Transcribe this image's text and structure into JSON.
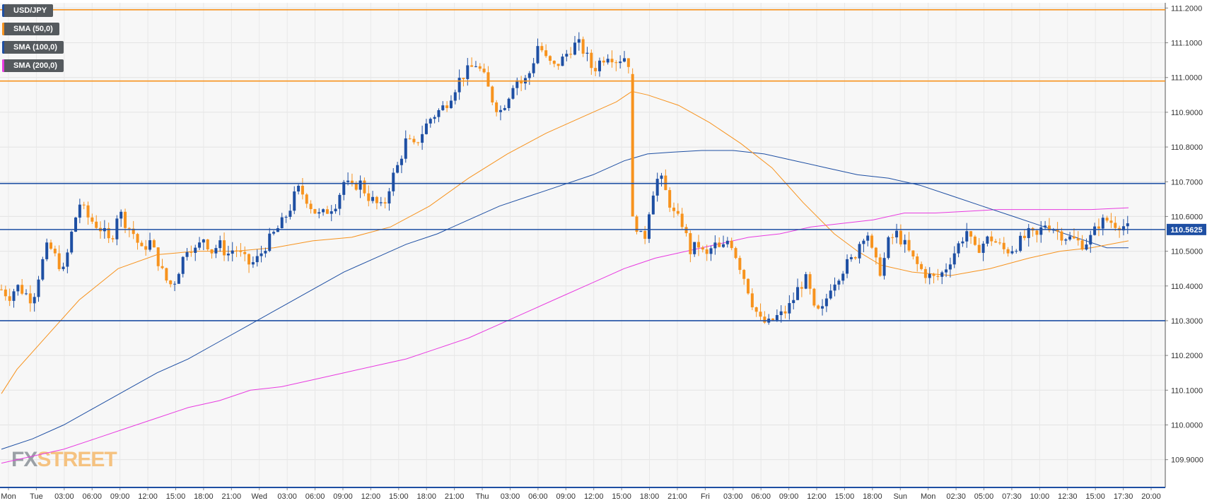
{
  "legend": [
    {
      "label": "USD/JPY",
      "color": "#1e4fa3"
    },
    {
      "label": "SMA (50,0)",
      "color": "#f7931e"
    },
    {
      "label": "SMA (100,0)",
      "color": "#1e4fa3"
    },
    {
      "label": "SMA (200,0)",
      "color": "#e83be0"
    }
  ],
  "watermark": {
    "part1": "FX",
    "part2": "STREET"
  },
  "current_price_label": "110.5625",
  "chart_data": {
    "type": "candlestick",
    "title": "",
    "xlabel": "",
    "ylabel": "",
    "ylim": [
      109.82,
      111.215
    ],
    "y_ticks": [
      "111.2000",
      "111.1000",
      "111.0000",
      "110.9000",
      "110.8000",
      "110.7000",
      "110.6000",
      "110.5000",
      "110.4000",
      "110.3000",
      "110.2000",
      "110.1000",
      "110.0000",
      "109.9000"
    ],
    "x_ticks": [
      "Mon",
      "Tue",
      "03:00",
      "06:00",
      "09:00",
      "12:00",
      "15:00",
      "18:00",
      "21:00",
      "Wed",
      "03:00",
      "06:00",
      "09:00",
      "12:00",
      "15:00",
      "18:00",
      "21:00",
      "Thu",
      "03:00",
      "06:00",
      "09:00",
      "12:00",
      "15:00",
      "18:00",
      "21:00",
      "Fri",
      "03:00",
      "06:00",
      "09:00",
      "12:00",
      "15:00",
      "18:00",
      "Sun",
      "Mon",
      "02:30",
      "05:00",
      "07:30",
      "10:00",
      "12:30",
      "15:00",
      "17:30",
      "20:00"
    ],
    "horizontal_levels": [
      {
        "value": 111.195,
        "color": "#f7931e"
      },
      {
        "value": 110.99,
        "color": "#f7931e"
      },
      {
        "value": 110.695,
        "color": "#1e4fa3"
      },
      {
        "value": 110.5625,
        "color": "#1e4fa3"
      },
      {
        "value": 110.3,
        "color": "#1e4fa3"
      }
    ],
    "up_color": "#1e4fa3",
    "down_color": "#f7931e",
    "close_path": [
      [
        0,
        110.39
      ],
      [
        10,
        110.37
      ],
      [
        20,
        110.4
      ],
      [
        30,
        110.38
      ],
      [
        40,
        110.36
      ],
      [
        50,
        110.45
      ],
      [
        60,
        110.52
      ],
      [
        70,
        110.48
      ],
      [
        80,
        110.44
      ],
      [
        90,
        110.55
      ],
      [
        100,
        110.64
      ],
      [
        110,
        110.6
      ],
      [
        120,
        110.58
      ],
      [
        130,
        110.56
      ],
      [
        140,
        110.52
      ],
      [
        150,
        110.62
      ],
      [
        160,
        110.58
      ],
      [
        170,
        110.55
      ],
      [
        180,
        110.5
      ],
      [
        190,
        110.53
      ],
      [
        200,
        110.48
      ],
      [
        210,
        110.42
      ],
      [
        220,
        110.4
      ],
      [
        230,
        110.46
      ],
      [
        240,
        110.52
      ],
      [
        250,
        110.5
      ],
      [
        260,
        110.54
      ],
      [
        270,
        110.5
      ],
      [
        280,
        110.52
      ],
      [
        290,
        110.49
      ],
      [
        300,
        110.51
      ],
      [
        310,
        110.48
      ],
      [
        320,
        110.46
      ],
      [
        330,
        110.48
      ],
      [
        340,
        110.52
      ],
      [
        350,
        110.55
      ],
      [
        360,
        110.58
      ],
      [
        370,
        110.62
      ],
      [
        380,
        110.68
      ],
      [
        390,
        110.66
      ],
      [
        400,
        110.62
      ],
      [
        410,
        110.6
      ],
      [
        420,
        110.62
      ],
      [
        430,
        110.64
      ],
      [
        440,
        110.7
      ],
      [
        450,
        110.68
      ],
      [
        460,
        110.7
      ],
      [
        470,
        110.66
      ],
      [
        480,
        110.64
      ],
      [
        490,
        110.62
      ],
      [
        500,
        110.7
      ],
      [
        510,
        110.75
      ],
      [
        520,
        110.82
      ],
      [
        530,
        110.8
      ],
      [
        540,
        110.84
      ],
      [
        550,
        110.88
      ],
      [
        560,
        110.9
      ],
      [
        570,
        110.92
      ],
      [
        580,
        110.96
      ],
      [
        590,
        111.0
      ],
      [
        600,
        111.02
      ],
      [
        610,
        111.04
      ],
      [
        620,
        111.0
      ],
      [
        630,
        110.94
      ],
      [
        640,
        110.9
      ],
      [
        650,
        110.94
      ],
      [
        660,
        111.0
      ],
      [
        670,
        110.98
      ],
      [
        680,
        111.02
      ],
      [
        690,
        111.1
      ],
      [
        700,
        111.05
      ],
      [
        710,
        111.03
      ],
      [
        720,
        111.05
      ],
      [
        730,
        111.08
      ],
      [
        740,
        111.1
      ],
      [
        750,
        111.07
      ],
      [
        760,
        111.02
      ],
      [
        770,
        111.05
      ],
      [
        780,
        111.07
      ],
      [
        790,
        111.05
      ],
      [
        800,
        111.06
      ],
      [
        810,
        111.03
      ],
      [
        815,
        110.58
      ],
      [
        825,
        110.52
      ],
      [
        835,
        110.66
      ],
      [
        845,
        110.72
      ],
      [
        855,
        110.66
      ],
      [
        865,
        110.6
      ],
      [
        875,
        110.58
      ],
      [
        885,
        110.5
      ],
      [
        895,
        110.52
      ],
      [
        905,
        110.48
      ],
      [
        915,
        110.52
      ],
      [
        925,
        110.5
      ],
      [
        935,
        110.54
      ],
      [
        945,
        110.48
      ],
      [
        955,
        110.42
      ],
      [
        965,
        110.35
      ],
      [
        975,
        110.3
      ],
      [
        985,
        110.29
      ],
      [
        995,
        110.31
      ],
      [
        1005,
        110.32
      ],
      [
        1015,
        110.35
      ],
      [
        1025,
        110.4
      ],
      [
        1035,
        110.42
      ],
      [
        1045,
        110.32
      ],
      [
        1055,
        110.33
      ],
      [
        1065,
        110.4
      ],
      [
        1075,
        110.43
      ],
      [
        1085,
        110.46
      ],
      [
        1095,
        110.48
      ],
      [
        1105,
        110.54
      ],
      [
        1112,
        110.56
      ],
      [
        1120,
        110.48
      ],
      [
        1130,
        110.44
      ],
      [
        1140,
        110.53
      ],
      [
        1150,
        110.55
      ],
      [
        1160,
        110.52
      ],
      [
        1170,
        110.48
      ],
      [
        1180,
        110.45
      ],
      [
        1190,
        110.43
      ],
      [
        1200,
        110.42
      ],
      [
        1210,
        110.44
      ],
      [
        1220,
        110.48
      ],
      [
        1230,
        110.52
      ],
      [
        1240,
        110.56
      ],
      [
        1250,
        110.5
      ],
      [
        1260,
        110.52
      ],
      [
        1270,
        110.54
      ],
      [
        1280,
        110.52
      ],
      [
        1290,
        110.5
      ],
      [
        1300,
        110.51
      ],
      [
        1310,
        110.53
      ],
      [
        1320,
        110.55
      ],
      [
        1330,
        110.54
      ],
      [
        1340,
        110.58
      ],
      [
        1350,
        110.57
      ],
      [
        1360,
        110.55
      ],
      [
        1370,
        110.54
      ],
      [
        1380,
        110.53
      ],
      [
        1390,
        110.52
      ],
      [
        1400,
        110.54
      ],
      [
        1410,
        110.58
      ],
      [
        1420,
        110.59
      ],
      [
        1430,
        110.58
      ],
      [
        1440,
        110.575
      ],
      [
        1447,
        110.565
      ]
    ],
    "sma50": [
      [
        0,
        110.09
      ],
      [
        20,
        110.16
      ],
      [
        60,
        110.26
      ],
      [
        100,
        110.36
      ],
      [
        150,
        110.45
      ],
      [
        200,
        110.49
      ],
      [
        250,
        110.5
      ],
      [
        300,
        110.5
      ],
      [
        350,
        110.51
      ],
      [
        400,
        110.53
      ],
      [
        450,
        110.54
      ],
      [
        500,
        110.57
      ],
      [
        550,
        110.63
      ],
      [
        600,
        110.71
      ],
      [
        650,
        110.78
      ],
      [
        700,
        110.84
      ],
      [
        750,
        110.89
      ],
      [
        790,
        110.93
      ],
      [
        810,
        110.96
      ],
      [
        830,
        110.95
      ],
      [
        870,
        110.92
      ],
      [
        910,
        110.87
      ],
      [
        950,
        110.81
      ],
      [
        990,
        110.74
      ],
      [
        1030,
        110.64
      ],
      [
        1070,
        110.55
      ],
      [
        1100,
        110.5
      ],
      [
        1130,
        110.46
      ],
      [
        1170,
        110.44
      ],
      [
        1220,
        110.43
      ],
      [
        1270,
        110.45
      ],
      [
        1320,
        110.48
      ],
      [
        1360,
        110.5
      ],
      [
        1400,
        110.51
      ],
      [
        1448,
        110.53
      ]
    ],
    "sma100": [
      [
        0,
        109.93
      ],
      [
        40,
        109.96
      ],
      [
        80,
        110.0
      ],
      [
        120,
        110.05
      ],
      [
        160,
        110.1
      ],
      [
        200,
        110.15
      ],
      [
        240,
        110.19
      ],
      [
        280,
        110.24
      ],
      [
        320,
        110.29
      ],
      [
        360,
        110.34
      ],
      [
        400,
        110.39
      ],
      [
        440,
        110.44
      ],
      [
        480,
        110.48
      ],
      [
        520,
        110.52
      ],
      [
        560,
        110.55
      ],
      [
        600,
        110.59
      ],
      [
        640,
        110.63
      ],
      [
        680,
        110.66
      ],
      [
        720,
        110.69
      ],
      [
        760,
        110.72
      ],
      [
        800,
        110.76
      ],
      [
        830,
        110.78
      ],
      [
        860,
        110.785
      ],
      [
        900,
        110.79
      ],
      [
        940,
        110.79
      ],
      [
        980,
        110.78
      ],
      [
        1020,
        110.76
      ],
      [
        1060,
        110.74
      ],
      [
        1100,
        110.72
      ],
      [
        1140,
        110.71
      ],
      [
        1180,
        110.69
      ],
      [
        1220,
        110.66
      ],
      [
        1260,
        110.63
      ],
      [
        1300,
        110.6
      ],
      [
        1340,
        110.57
      ],
      [
        1380,
        110.54
      ],
      [
        1420,
        110.51
      ],
      [
        1448,
        110.51
      ]
    ],
    "sma200": [
      [
        0,
        109.89
      ],
      [
        40,
        109.91
      ],
      [
        80,
        109.93
      ],
      [
        120,
        109.96
      ],
      [
        160,
        109.99
      ],
      [
        200,
        110.02
      ],
      [
        240,
        110.05
      ],
      [
        280,
        110.07
      ],
      [
        320,
        110.1
      ],
      [
        360,
        110.11
      ],
      [
        400,
        110.13
      ],
      [
        440,
        110.15
      ],
      [
        480,
        110.17
      ],
      [
        520,
        110.19
      ],
      [
        560,
        110.22
      ],
      [
        600,
        110.25
      ],
      [
        640,
        110.29
      ],
      [
        680,
        110.33
      ],
      [
        720,
        110.37
      ],
      [
        760,
        110.41
      ],
      [
        800,
        110.45
      ],
      [
        840,
        110.48
      ],
      [
        880,
        110.5
      ],
      [
        920,
        110.52
      ],
      [
        960,
        110.54
      ],
      [
        1000,
        110.55
      ],
      [
        1040,
        110.57
      ],
      [
        1080,
        110.58
      ],
      [
        1120,
        110.59
      ],
      [
        1160,
        110.61
      ],
      [
        1200,
        110.61
      ],
      [
        1240,
        110.615
      ],
      [
        1280,
        110.62
      ],
      [
        1320,
        110.62
      ],
      [
        1360,
        110.62
      ],
      [
        1400,
        110.62
      ],
      [
        1448,
        110.625
      ]
    ]
  }
}
